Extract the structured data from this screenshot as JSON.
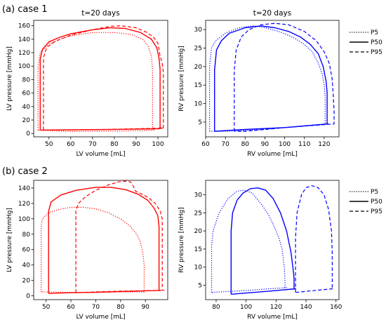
{
  "case_labels": {
    "case1": "(a) case 1",
    "case2": "(b) case 2"
  },
  "legend": {
    "p5": "P5",
    "p50": "P50",
    "p95": "P95"
  },
  "colors": {
    "lv": "#ff0000",
    "rv": "#0000ff"
  },
  "chart_data": [
    {
      "type": "line",
      "title": "t=20 days",
      "xlabel": "LV volume [mL]",
      "ylabel": "LV pressure [mmHg]",
      "xlim": [
        43,
        104.5
      ],
      "ylim": [
        -5,
        168
      ],
      "xticks": [
        50,
        60,
        70,
        80,
        90,
        100
      ],
      "yticks": [
        0,
        20,
        40,
        60,
        80,
        100,
        120,
        140,
        160
      ],
      "series": [
        {
          "name": "P5",
          "style": "dotted",
          "x": [
            45,
            45,
            46,
            50,
            55,
            60,
            70,
            80,
            88,
            93,
            95.5,
            97,
            97.5,
            97.5,
            98,
            96,
            80,
            60,
            45
          ],
          "y": [
            5,
            100,
            120,
            133,
            140,
            145,
            150,
            150,
            147,
            140,
            130,
            115,
            95,
            5,
            5,
            4.5,
            3.5,
            3,
            5
          ]
        },
        {
          "name": "P50",
          "style": "solid",
          "x": [
            46,
            46,
            47,
            50,
            55,
            60,
            70,
            78,
            85,
            92,
            97,
            99.5,
            100.5,
            101,
            101,
            102,
            100,
            80,
            60,
            46
          ],
          "y": [
            5,
            110,
            125,
            136,
            143,
            148,
            154,
            157,
            156,
            150,
            140,
            127,
            112,
            95,
            8,
            8,
            7,
            6,
            5.5,
            5
          ]
        },
        {
          "name": "P95",
          "style": "dashed",
          "x": [
            47.5,
            47.5,
            49,
            53,
            60,
            70,
            78,
            83,
            90,
            95,
            98,
            100,
            100.5,
            101,
            102,
            102.5,
            102.5,
            101,
            90,
            70,
            50,
            47.5
          ],
          "y": [
            5,
            113,
            128,
            137,
            146,
            154,
            159,
            160,
            157,
            150,
            143,
            134,
            125,
            115,
            105,
            90,
            8,
            8,
            7,
            5.5,
            5,
            5
          ]
        }
      ]
    },
    {
      "type": "line",
      "title": "t=20 days",
      "xlabel": "RV volume [mL]",
      "ylabel": "RV pressure [mmHg]",
      "xlim": [
        60,
        127.5
      ],
      "ylim": [
        1,
        32.5
      ],
      "xticks": [
        60,
        70,
        80,
        90,
        100,
        110,
        120
      ],
      "yticks": [
        5,
        10,
        15,
        20,
        25,
        30
      ],
      "series": [
        {
          "name": "P5",
          "style": "dotted",
          "x": [
            62,
            62,
            63,
            65,
            70,
            77,
            84,
            90,
            97,
            104,
            110,
            114,
            117,
            119,
            120,
            120.5,
            120.5,
            121,
            110,
            90,
            70,
            62
          ],
          "y": [
            2.5,
            20,
            25,
            27,
            29,
            30.5,
            31,
            30.5,
            29.5,
            28,
            26,
            24,
            21,
            18,
            15,
            12,
            4.5,
            4.5,
            4,
            3,
            2.5,
            2.5
          ]
        },
        {
          "name": "P50",
          "style": "solid",
          "x": [
            64.5,
            64.5,
            65.5,
            68,
            72,
            80,
            88,
            95,
            102,
            108,
            113,
            117,
            119.5,
            121,
            121.5,
            121.5,
            122,
            118,
            100,
            80,
            64.5
          ],
          "y": [
            2.5,
            19,
            24.5,
            27,
            29,
            30.5,
            31,
            30.5,
            29.5,
            28,
            26,
            23.5,
            20,
            16,
            13,
            4.5,
            4.5,
            4.3,
            3.5,
            3,
            2.5
          ]
        },
        {
          "name": "P95",
          "style": "dashed",
          "x": [
            74.5,
            74.5,
            75.5,
            78,
            82,
            88,
            95,
            102,
            110,
            116,
            120,
            122.5,
            124,
            124.5,
            125,
            125,
            120,
            100,
            80,
            74.5
          ],
          "y": [
            2.5,
            19,
            24.5,
            28,
            30,
            31.3,
            31.7,
            31.3,
            29.5,
            27,
            24,
            21,
            17,
            13,
            8,
            4.5,
            4.3,
            3.5,
            2.5,
            2.5
          ]
        }
      ]
    },
    {
      "type": "line",
      "title": "",
      "xlabel": "LV volume [mL]",
      "ylabel": "LV pressure [mmHg]",
      "xlim": [
        45,
        99
      ],
      "ylim": [
        -5,
        150
      ],
      "xticks": [
        50,
        60,
        70,
        80,
        90
      ],
      "yticks": [
        0,
        20,
        40,
        60,
        80,
        100,
        120,
        140
      ],
      "series": [
        {
          "name": "P5",
          "style": "dotted",
          "x": [
            48,
            48,
            48.5,
            51,
            55,
            60,
            65,
            70,
            75,
            80,
            84,
            86.5,
            88,
            89,
            89.5,
            89.5,
            80,
            70,
            60,
            48
          ],
          "y": [
            5,
            90,
            100,
            108,
            112,
            115,
            115,
            113,
            108,
            100,
            90,
            80,
            70,
            55,
            40,
            5,
            5,
            4.5,
            4.5,
            5
          ]
        },
        {
          "name": "P50",
          "style": "solid",
          "x": [
            51,
            51,
            52,
            56,
            62,
            70,
            76,
            82,
            87,
            91,
            93.5,
            95,
            95.5,
            95.5,
            96,
            85,
            70,
            60,
            51
          ],
          "y": [
            3,
            110,
            122,
            131,
            137,
            141,
            141,
            138,
            132,
            124,
            114,
            104,
            90,
            7,
            7,
            6,
            4.5,
            4,
            3
          ]
        },
        {
          "name": "P95",
          "style": "dashed",
          "x": [
            62,
            62,
            63,
            66,
            70,
            75,
            79,
            82,
            84,
            85,
            86,
            88,
            91,
            94,
            96,
            96.8,
            96.8,
            97.5,
            90,
            80,
            70,
            62
          ],
          "y": [
            4,
            110,
            120,
            129,
            137,
            144,
            148,
            149,
            148,
            143,
            136,
            133,
            128,
            120,
            110,
            100,
            7,
            7,
            6.5,
            6,
            5,
            4
          ]
        }
      ]
    },
    {
      "type": "line",
      "title": "",
      "xlabel": "RV volume [mL]",
      "ylabel": "RV pressure [mmHg]",
      "xlim": [
        73,
        162
      ],
      "ylim": [
        1,
        34
      ],
      "xticks": [
        80,
        100,
        120,
        140,
        160
      ],
      "yticks": [
        5,
        10,
        15,
        20,
        25,
        30
      ],
      "series": [
        {
          "name": "P5",
          "style": "dotted",
          "x": [
            77,
            77,
            78,
            82,
            88,
            94,
            99,
            104,
            110,
            115,
            119,
            122,
            124,
            125.5,
            126,
            126,
            127,
            115,
            100,
            85,
            77
          ],
          "y": [
            3,
            16,
            20,
            25,
            29,
            31,
            31.3,
            30.5,
            27.5,
            24.5,
            21,
            18,
            15,
            10,
            6,
            4.3,
            4.3,
            4,
            3.5,
            3.2,
            3
          ]
        },
        {
          "name": "P50",
          "style": "solid",
          "x": [
            90,
            90,
            91,
            94,
            98,
            103,
            108,
            113,
            118,
            123,
            127,
            130,
            131.5,
            132,
            132,
            132,
            133,
            120,
            105,
            90
          ],
          "y": [
            2.5,
            20,
            25,
            28.5,
            30.5,
            31.7,
            31.9,
            31.3,
            29,
            25,
            20,
            14,
            9,
            7,
            5,
            4,
            4,
            3.5,
            3,
            2.5
          ]
        },
        {
          "name": "P95",
          "style": "dashed",
          "x": [
            133,
            133,
            134,
            137,
            140,
            144,
            148,
            152,
            155,
            157,
            157.5,
            157.5,
            158,
            150,
            140,
            133
          ],
          "y": [
            3,
            18,
            25,
            30,
            32,
            32.5,
            32,
            30,
            26,
            20,
            14,
            4,
            4,
            3.7,
            3.3,
            3
          ]
        }
      ]
    }
  ]
}
